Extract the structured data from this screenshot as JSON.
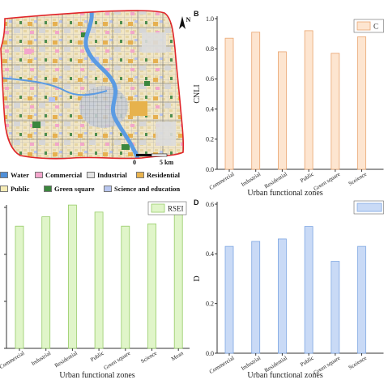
{
  "map": {
    "north_label": "N",
    "scale_bar": {
      "start": "0",
      "end": "5 km"
    },
    "boundary_color": "#e0262a",
    "river_color": "#5b9be3",
    "legend": [
      {
        "label": "Water",
        "color": "#4f8fd8"
      },
      {
        "label": "Commercial",
        "color": "#f3a6cc"
      },
      {
        "label": "Industrial",
        "color": "#e4e4e4"
      },
      {
        "label": "Residential",
        "color": "#e9b34f"
      },
      {
        "label": "Public",
        "color": "#f6ecb6"
      },
      {
        "label": "Green square",
        "color": "#3b873d"
      },
      {
        "label": "Science and education",
        "color": "#b8c6ef"
      }
    ]
  },
  "chart_data": [
    {
      "label": "B",
      "type": "bar",
      "categories": [
        "Commercial",
        "Industrial",
        "Residential",
        "Public",
        "Green square",
        "Sceience"
      ],
      "series": [
        {
          "name": "C",
          "values": [
            0.87,
            0.91,
            0.78,
            0.92,
            0.77,
            0.88
          ]
        }
      ],
      "xlabel": "Urban functional zones",
      "ylabel": "CNLI",
      "ylim": [
        0,
        1.0
      ],
      "yticks": [
        0,
        0.2,
        0.4,
        0.6,
        0.8,
        1.0
      ],
      "ytick_labels": [
        "0.0",
        "0.2",
        "0.4",
        "0.6",
        "0.8",
        "1.0"
      ],
      "legend": "top-right",
      "grid": false,
      "bar_fill": "#fde5d0",
      "bar_stroke": "#e9a46f"
    },
    {
      "type": "bar",
      "categories": [
        "Commercial",
        "Industrial",
        "Residential",
        "Public",
        "Green square",
        "Science",
        "Mean"
      ],
      "series": [
        {
          "name": "RSEI",
          "values": [
            0.52,
            0.56,
            0.61,
            0.58,
            0.52,
            0.53,
            0.57
          ]
        }
      ],
      "xlabel": "Urban functional zones",
      "ylim": [
        0,
        0.6
      ],
      "yticks": [
        0,
        0.2,
        0.4,
        0.6
      ],
      "legend": "top-right",
      "grid": false,
      "bar_fill": "#e0f5c9",
      "bar_stroke": "#97cc68"
    },
    {
      "label": "D",
      "type": "bar",
      "categories": [
        "Commercial",
        "Industrial",
        "Residential",
        "Public",
        "Green square",
        "Sceience"
      ],
      "series": [
        {
          "values": [
            0.43,
            0.45,
            0.46,
            0.51,
            0.37,
            0.43
          ]
        }
      ],
      "xlabel": "Urban functional zones",
      "ylabel": "D",
      "ylim": [
        0,
        0.6
      ],
      "yticks": [
        0,
        0.2,
        0.4,
        0.6
      ],
      "ytick_labels": [
        "0.0",
        "0.2",
        "0.4",
        "0.6"
      ],
      "legend": "top-right",
      "grid": false,
      "bar_fill": "#c9daf6",
      "bar_stroke": "#7ea6e2"
    }
  ]
}
